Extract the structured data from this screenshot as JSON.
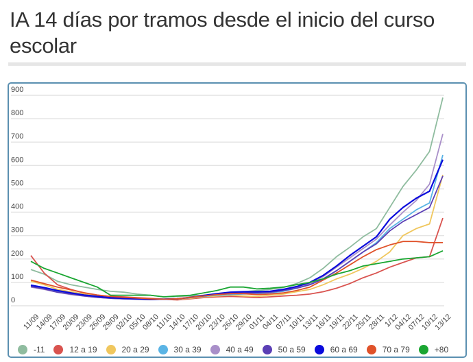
{
  "header": {
    "title": "IA 14 días por tramos desde el inicio del curso escolar"
  },
  "chart_data": {
    "type": "line",
    "title": "IA 14 días por tramos desde el inicio del curso escolar",
    "xlabel": "",
    "ylabel": "",
    "ylim": [
      0,
      900
    ],
    "yticks": [
      0,
      100,
      200,
      300,
      400,
      500,
      600,
      700,
      800,
      900
    ],
    "grid": true,
    "legend_position": "bottom",
    "x": [
      "11/09",
      "14/09",
      "17/09",
      "20/09",
      "23/09",
      "26/09",
      "29/09",
      "02/10",
      "05/10",
      "08/10",
      "11/10",
      "14/10",
      "17/10",
      "20/10",
      "23/10",
      "26/10",
      "29/10",
      "01/11",
      "04/11",
      "07/11",
      "10/11",
      "13/11",
      "16/11",
      "19/11",
      "22/11",
      "25/11",
      "28/11",
      "1/12",
      "04/12",
      "07/12",
      "10/12",
      "13/12"
    ],
    "series": [
      {
        "name": "-11",
        "color": "#8fbc9f",
        "values": [
          155,
          135,
          105,
          90,
          80,
          70,
          62,
          58,
          50,
          45,
          38,
          40,
          42,
          45,
          48,
          55,
          60,
          65,
          70,
          78,
          95,
          120,
          160,
          210,
          250,
          295,
          330,
          420,
          510,
          580,
          660,
          890
        ]
      },
      {
        "name": "12 a 19",
        "color": "#d9534f",
        "values": [
          215,
          140,
          90,
          70,
          55,
          45,
          40,
          38,
          35,
          32,
          28,
          25,
          30,
          35,
          38,
          40,
          38,
          35,
          38,
          42,
          45,
          50,
          60,
          75,
          95,
          120,
          140,
          165,
          185,
          205,
          210,
          375
        ]
      },
      {
        "name": "20 a 29",
        "color": "#f0c75e",
        "values": [
          105,
          90,
          70,
          60,
          50,
          42,
          38,
          35,
          32,
          30,
          28,
          28,
          32,
          38,
          42,
          45,
          42,
          40,
          45,
          50,
          60,
          70,
          90,
          115,
          135,
          160,
          190,
          230,
          300,
          330,
          350,
          560
        ]
      },
      {
        "name": "30 a 39",
        "color": "#5ab4e5",
        "values": [
          85,
          75,
          62,
          52,
          45,
          38,
          32,
          30,
          28,
          26,
          28,
          30,
          35,
          40,
          45,
          48,
          50,
          52,
          55,
          62,
          75,
          90,
          115,
          150,
          190,
          230,
          270,
          330,
          370,
          410,
          440,
          645
        ]
      },
      {
        "name": "40 a 49",
        "color": "#a98fc9",
        "values": [
          80,
          70,
          58,
          48,
          42,
          36,
          32,
          30,
          28,
          27,
          28,
          30,
          35,
          42,
          48,
          52,
          55,
          55,
          58,
          65,
          78,
          95,
          125,
          165,
          205,
          245,
          285,
          345,
          400,
          450,
          520,
          735
        ]
      },
      {
        "name": "50 a 59",
        "color": "#5b3fb5",
        "values": [
          82,
          72,
          58,
          50,
          42,
          36,
          32,
          30,
          28,
          26,
          28,
          30,
          35,
          42,
          48,
          52,
          55,
          55,
          58,
          65,
          75,
          90,
          115,
          150,
          190,
          230,
          265,
          320,
          360,
          390,
          420,
          555
        ]
      },
      {
        "name": "60 a 69",
        "color": "#0a0adc",
        "values": [
          88,
          78,
          65,
          55,
          46,
          40,
          35,
          32,
          30,
          28,
          28,
          30,
          36,
          44,
          52,
          58,
          60,
          60,
          62,
          70,
          82,
          100,
          130,
          170,
          215,
          255,
          295,
          370,
          420,
          460,
          490,
          625
        ]
      },
      {
        "name": "70 a 79",
        "color": "#e0522a",
        "values": [
          110,
          95,
          80,
          68,
          56,
          46,
          40,
          36,
          33,
          30,
          28,
          30,
          36,
          42,
          48,
          52,
          52,
          48,
          50,
          55,
          65,
          80,
          110,
          140,
          175,
          210,
          240,
          260,
          275,
          275,
          270,
          270
        ]
      },
      {
        "name": "+80",
        "color": "#1aa632",
        "values": [
          190,
          160,
          140,
          120,
          100,
          80,
          45,
          45,
          45,
          45,
          38,
          42,
          45,
          55,
          65,
          80,
          80,
          72,
          75,
          80,
          90,
          100,
          115,
          135,
          150,
          170,
          180,
          190,
          200,
          205,
          210,
          235
        ]
      }
    ]
  },
  "legend": [
    {
      "label": "-11",
      "color": "#8fbc9f"
    },
    {
      "label": "12 a 19",
      "color": "#d9534f"
    },
    {
      "label": "20 a 29",
      "color": "#f0c75e"
    },
    {
      "label": "30 a 39",
      "color": "#5ab4e5"
    },
    {
      "label": "40 a 49",
      "color": "#a98fc9"
    },
    {
      "label": "50 a 59",
      "color": "#5b3fb5"
    },
    {
      "label": "60 a 69",
      "color": "#0a0adc"
    },
    {
      "label": "70 a 79",
      "color": "#e0522a"
    },
    {
      "label": "+80",
      "color": "#1aa632"
    }
  ]
}
